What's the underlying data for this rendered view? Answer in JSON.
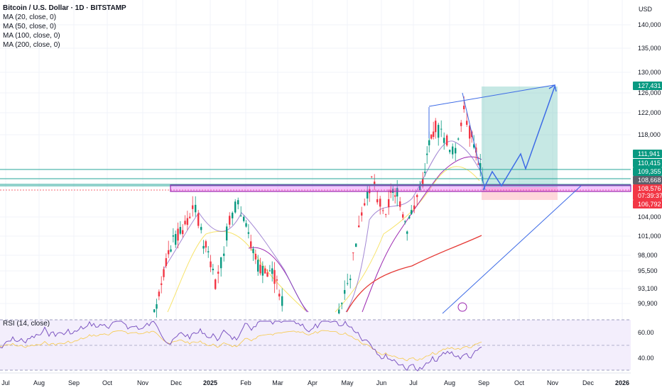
{
  "header": {
    "title": "Bitcoin / U.S. Dollar · 1D · BITSTAMP",
    "indicators": [
      "MA (20, close, 0)",
      "MA (50, close, 0)",
      "MA (100, close, 0)",
      "MA (200, close, 0)"
    ],
    "currency": "USD"
  },
  "rsi": {
    "label": "RSI (14, close)",
    "levels": [
      "60.00",
      "40.00"
    ]
  },
  "colors": {
    "up": "#089981",
    "down": "#f23645",
    "ma20": "#7e57c2",
    "ma50": "#f7e36a",
    "ma100": "#9c27b0",
    "ma200": "#e53935",
    "drawing": "#3d6be6",
    "zone": "#e040fb",
    "target": "#80cbc4",
    "stop": "#ffcdd2"
  },
  "chart_data": {
    "type": "candlestick",
    "x_ticks": [
      "Jul",
      "Aug",
      "Sep",
      "Oct",
      "Nov",
      "Dec",
      "2025",
      "Feb",
      "Mar",
      "Apr",
      "May",
      "Jun",
      "Jul",
      "Aug",
      "Sep",
      "Oct",
      "Nov",
      "Dec",
      "2026"
    ],
    "y_ticks": [
      "140,000",
      "135,000",
      "130,000",
      "126,000",
      "122,000",
      "118,000",
      "104,000",
      "101,000",
      "98,000",
      "95,500",
      "93,100",
      "90,900"
    ],
    "price_labels": [
      {
        "text": "127,431",
        "value": 127431,
        "color": "#089981"
      },
      {
        "text": "111,941",
        "value": 111941,
        "color": "#089981"
      },
      {
        "text": "110,415",
        "value": 110415,
        "color": "#089981"
      },
      {
        "text": "109,355",
        "value": 109355,
        "color": "#089981"
      },
      {
        "text": "108,668",
        "value": 108668,
        "color": "#5d606b"
      },
      {
        "text": "108,576",
        "value": 108576,
        "color": "#f23645"
      },
      {
        "text": "07:39:37",
        "value": 107900,
        "color": "#f23645"
      },
      {
        "text": "106,792",
        "value": 106792,
        "color": "#f23645"
      }
    ],
    "levels": [
      111941,
      110415,
      109355,
      108668
    ],
    "zone": [
      107800,
      108900
    ],
    "last_price": 108576
  }
}
